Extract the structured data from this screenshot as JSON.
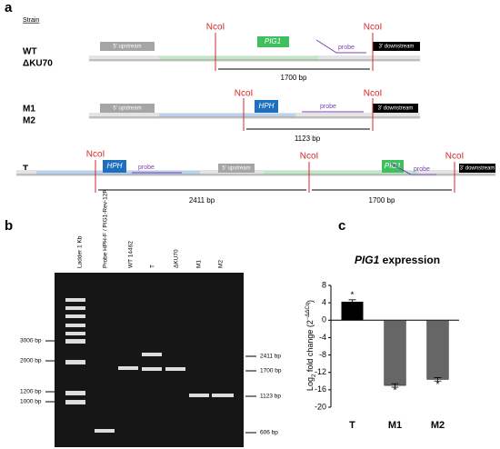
{
  "panel_a": {
    "label": "a",
    "strain_header": "Strain",
    "rows": [
      {
        "strains": [
          "WT",
          "ΔKU70"
        ],
        "features": [
          "5' upstream",
          "PIG1",
          "probe",
          "3' downstream"
        ],
        "sites": [
          "NcoI",
          "NcoI"
        ],
        "fragments": [
          "1700 bp"
        ]
      },
      {
        "strains": [
          "M1",
          "M2"
        ],
        "features": [
          "5' upstream",
          "HPH",
          "probe",
          "3' downstream"
        ],
        "sites": [
          "NcoI",
          "NcoI"
        ],
        "fragments": [
          "1123 bp"
        ]
      },
      {
        "strains": [
          "T"
        ],
        "features": [
          "HPH",
          "probe",
          "5' upstream",
          "PIG1",
          "probe",
          "3' downstream"
        ],
        "sites": [
          "NcoI",
          "NcoI",
          "NcoI"
        ],
        "fragments": [
          "2411 bp",
          "1700 bp"
        ]
      }
    ]
  },
  "panel_b": {
    "label": "b",
    "lanes": [
      "Ladder 1 Kb",
      "Probe HPH-F / PIG1-Rev-12R",
      "WT 14462",
      "T",
      "ΔKU70",
      "M1",
      "M2"
    ],
    "left_sizes": [
      "3000 bp",
      "2000 bp",
      "1200 bp",
      "1000 bp"
    ],
    "right_sizes": [
      "2411 bp",
      "1700 bp",
      "1123 bp",
      "606 bp"
    ]
  },
  "chart_data": {
    "type": "bar",
    "label": "c",
    "title": [
      "PIG1",
      " expression"
    ],
    "ylabel": [
      "Log",
      "2",
      " fold change (2",
      "−ΔΔCq",
      ")"
    ],
    "categories": [
      "T",
      "M1",
      "M2"
    ],
    "values": [
      4.2,
      -15.0,
      -13.6
    ],
    "errors": [
      0.5,
      0.4,
      0.4
    ],
    "colors": [
      "#000000",
      "#666666",
      "#666666"
    ],
    "annotations": [
      "*",
      "*",
      "*"
    ],
    "ylim": [
      -20,
      8
    ],
    "yticks": [
      8,
      4,
      0,
      -4,
      -8,
      -12,
      -16,
      -20
    ]
  }
}
